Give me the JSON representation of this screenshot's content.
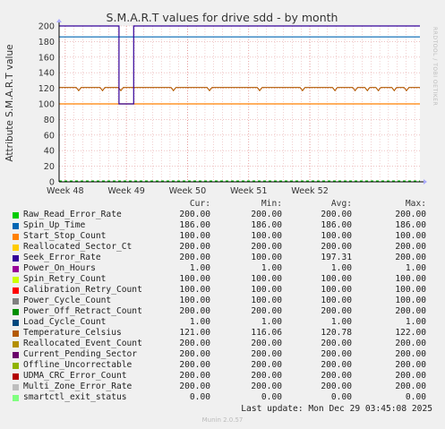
{
  "chart_data": {
    "type": "line",
    "title": "S.M.A.R.T values for drive sdd - by month",
    "ylabel": "Attribute S.M.A.R.T value",
    "xlabel": "",
    "ylim": [
      0,
      200
    ],
    "yticks": [
      0,
      20,
      40,
      60,
      80,
      100,
      120,
      140,
      160,
      180,
      200
    ],
    "xlim_week": [
      47.9,
      53.8
    ],
    "x_ticks": [
      {
        "label": "Week 48",
        "week": 48
      },
      {
        "label": "Week 49",
        "week": 49
      },
      {
        "label": "Week 50",
        "week": 50
      },
      {
        "label": "Week 51",
        "week": 51
      },
      {
        "label": "Week 52",
        "week": 52
      }
    ],
    "series": [
      {
        "name": "Raw_Read_Error_Rate",
        "color": "#00cc00",
        "cur": "200.00",
        "min": "200.00",
        "avg": "200.00",
        "max": "200.00",
        "line": 200
      },
      {
        "name": "Spin_Up_Time",
        "color": "#0066b3",
        "cur": "186.00",
        "min": "186.00",
        "avg": "186.00",
        "max": "186.00",
        "line": 186
      },
      {
        "name": "Start_Stop_Count",
        "color": "#ff8000",
        "cur": "100.00",
        "min": "100.00",
        "avg": "100.00",
        "max": "100.00",
        "line": 100
      },
      {
        "name": "Reallocated_Sector_Ct",
        "color": "#ffcc00",
        "cur": "200.00",
        "min": "200.00",
        "avg": "200.00",
        "max": "200.00",
        "line": 200
      },
      {
        "name": "Seek_Error_Rate",
        "color": "#330099",
        "cur": "200.00",
        "min": "100.00",
        "avg": "197.31",
        "max": "200.00",
        "line": 200
      },
      {
        "name": "Power_On_Hours",
        "color": "#990099",
        "cur": "1.00",
        "min": "1.00",
        "avg": "1.00",
        "max": "1.00",
        "line": 1
      },
      {
        "name": "Spin_Retry_Count",
        "color": "#ccff00",
        "cur": "100.00",
        "min": "100.00",
        "avg": "100.00",
        "max": "100.00",
        "line": 100
      },
      {
        "name": "Calibration_Retry_Count",
        "color": "#ff0000",
        "cur": "100.00",
        "min": "100.00",
        "avg": "100.00",
        "max": "100.00",
        "line": 100
      },
      {
        "name": "Power_Cycle_Count",
        "color": "#808080",
        "cur": "100.00",
        "min": "100.00",
        "avg": "100.00",
        "max": "100.00",
        "line": 100
      },
      {
        "name": "Power_Off_Retract_Count",
        "color": "#008f00",
        "cur": "200.00",
        "min": "200.00",
        "avg": "200.00",
        "max": "200.00",
        "line": 200
      },
      {
        "name": "Load_Cycle_Count",
        "color": "#00487d",
        "cur": "1.00",
        "min": "1.00",
        "avg": "1.00",
        "max": "1.00",
        "line": 1
      },
      {
        "name": "Temperature_Celsius",
        "color": "#b35a00",
        "cur": "121.00",
        "min": "116.06",
        "avg": "120.78",
        "max": "122.00",
        "line": 121
      },
      {
        "name": "Reallocated_Event_Count",
        "color": "#b38f00",
        "cur": "200.00",
        "min": "200.00",
        "avg": "200.00",
        "max": "200.00",
        "line": 200
      },
      {
        "name": "Current_Pending_Sector",
        "color": "#6b006b",
        "cur": "200.00",
        "min": "200.00",
        "avg": "200.00",
        "max": "200.00",
        "line": 200
      },
      {
        "name": "Offline_Uncorrectable",
        "color": "#8fb300",
        "cur": "200.00",
        "min": "200.00",
        "avg": "200.00",
        "max": "200.00",
        "line": 200
      },
      {
        "name": "UDMA_CRC_Error_Count",
        "color": "#b30000",
        "cur": "200.00",
        "min": "200.00",
        "avg": "200.00",
        "max": "200.00",
        "line": 200
      },
      {
        "name": "Multi_Zone_Error_Rate",
        "color": "#bebebe",
        "cur": "200.00",
        "min": "200.00",
        "avg": "200.00",
        "max": "200.00",
        "line": 200
      },
      {
        "name": "smartctl_exit_status",
        "color": "#80ff80",
        "cur": "0.00",
        "min": "0.00",
        "avg": "0.00",
        "max": "0.00",
        "line": 0
      }
    ],
    "seek_dip": {
      "week_start": 48.88,
      "week_end": 49.12,
      "value": 100
    },
    "temp_dips_week": [
      48.22,
      48.61,
      48.91,
      49.77,
      50.36,
      51.18,
      51.88,
      52.41,
      52.74,
      52.94,
      53.12,
      53.38,
      53.58
    ],
    "temp_dip_value": 117
  },
  "legend_headers": {
    "cur": "Cur:",
    "min": "Min:",
    "avg": "Avg:",
    "max": "Max:"
  },
  "footer": {
    "last_update": "Last update: Mon Dec 29 03:45:08 2025",
    "munin": "Munin 2.0.57"
  },
  "side_label": "RRDTOOL / TOBI OETIKER"
}
